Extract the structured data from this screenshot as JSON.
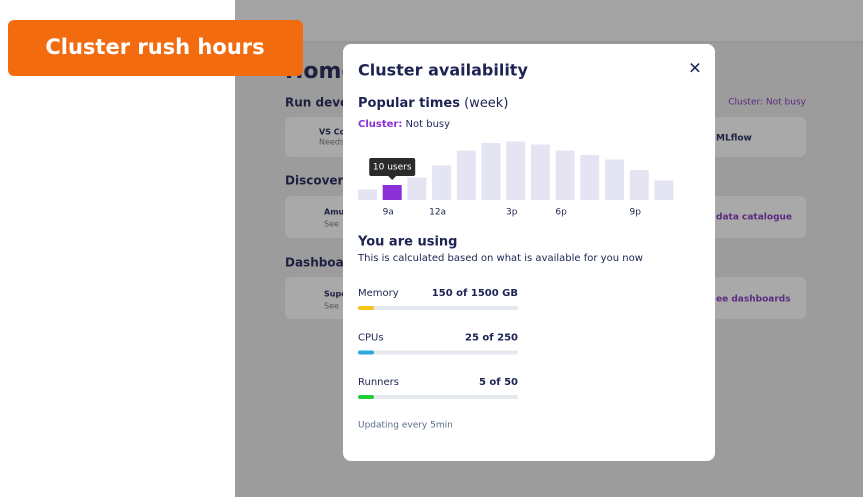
{
  "badge": "Cluster rush hours",
  "background": {
    "title": "Home",
    "status": "Cluster: Not busy",
    "sections": [
      "Run devel",
      "Discover c",
      "Dashboar"
    ],
    "cards": [
      {
        "title": "VS Co",
        "sub": "Needs"
      },
      {
        "title": "MLflow"
      },
      {
        "title": "Amu",
        "sub": "See"
      },
      {
        "title": "data catalogue"
      },
      {
        "title": "Supe",
        "sub": "See"
      },
      {
        "title": "ee dashboards"
      }
    ]
  },
  "modal": {
    "title": "Cluster availability",
    "close": "✕",
    "popular_title": "Popular times",
    "popular_period": "(week)",
    "cluster_label": "Cluster:",
    "cluster_status": "Not busy",
    "chart": {
      "type": "bar",
      "categories": [
        null,
        "9a",
        null,
        "12a",
        null,
        null,
        "3p",
        null,
        "6p",
        null,
        null,
        "9p",
        null
      ],
      "values": [
        7,
        10,
        15,
        23,
        33,
        38,
        39,
        37,
        33,
        30,
        27,
        20,
        13
      ],
      "value_labels": [
        null,
        "10 users",
        null,
        null,
        null,
        null,
        null,
        null,
        null,
        null,
        null,
        null,
        null
      ],
      "color": "#e4e4f3",
      "highlight_color": "#8b2fd6",
      "highlight": 1
    },
    "using_title": "You are using",
    "using_sub": "This is calculated based on what is available for you now",
    "usage": [
      {
        "name": "Memory",
        "label": "150 of 1500 GB",
        "used": 150,
        "total": 1500,
        "color": "#f5c518"
      },
      {
        "name": "CPUs",
        "label": "25 of 250",
        "used": 25,
        "total": 250,
        "color": "#2aa7dd"
      },
      {
        "name": "Runners",
        "label": "5 of 50",
        "used": 5,
        "total": 50,
        "color": "#1fcf3a"
      }
    ],
    "footer": "Updating every 5min"
  }
}
